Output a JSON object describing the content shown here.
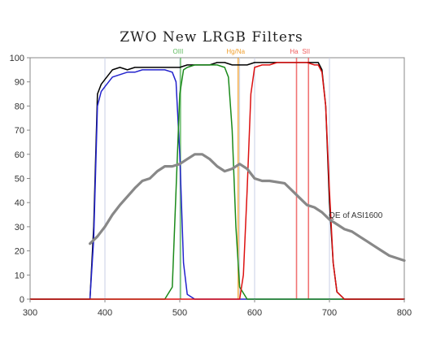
{
  "chart_data": {
    "type": "line",
    "title": "ZWO New LRGB Filters",
    "xlabel": "",
    "ylabel": "",
    "xlim": [
      300,
      800
    ],
    "ylim": [
      0,
      100
    ],
    "x_ticks": [
      300,
      400,
      500,
      600,
      700,
      800
    ],
    "y_ticks": [
      0,
      10,
      20,
      30,
      40,
      50,
      60,
      70,
      80,
      90,
      100
    ],
    "grid": false,
    "reference_lines": [
      {
        "label": "OIII",
        "x": 501,
        "color": "#5cb85c"
      },
      {
        "label": "Hg/Na",
        "x": 578,
        "color": "#f0a030"
      },
      {
        "label": "Ha",
        "x": 656,
        "color": "#ef5b5b"
      },
      {
        "label": "SII",
        "x": 672,
        "color": "#ef5b5b"
      }
    ],
    "light_lines_x": [
      400,
      500,
      580,
      600,
      700
    ],
    "annotations": [
      {
        "text": "QE of ASI1600",
        "x": 735,
        "y": 35
      }
    ],
    "series": [
      {
        "color": "#000000",
        "x": [
          300,
          380,
          385,
          390,
          395,
          400,
          410,
          420,
          430,
          440,
          450,
          460,
          470,
          480,
          490,
          500,
          510,
          520,
          530,
          540,
          550,
          560,
          570,
          580,
          590,
          600,
          610,
          620,
          630,
          640,
          650,
          660,
          670,
          680,
          685,
          690,
          695,
          700,
          705,
          710,
          720,
          740,
          800
        ],
        "y": [
          0,
          0,
          30,
          85,
          89,
          91,
          95,
          96,
          95,
          96,
          96,
          96,
          96,
          96,
          96,
          96,
          97,
          97,
          97,
          97,
          98,
          98,
          97,
          97,
          97,
          98,
          98,
          98,
          98,
          98,
          98,
          98,
          98,
          98,
          98,
          95,
          80,
          40,
          15,
          3,
          0,
          0,
          0
        ]
      },
      {
        "color": "#2222cc",
        "x": [
          300,
          380,
          385,
          390,
          395,
          400,
          410,
          420,
          430,
          440,
          450,
          460,
          470,
          480,
          490,
          495,
          500,
          505,
          510,
          520,
          800
        ],
        "y": [
          0,
          0,
          25,
          80,
          86,
          88,
          92,
          93,
          94,
          94,
          95,
          95,
          95,
          95,
          94,
          90,
          60,
          15,
          2,
          0,
          0
        ]
      },
      {
        "color": "#1a8a1a",
        "x": [
          300,
          480,
          490,
          495,
          500,
          505,
          510,
          520,
          530,
          540,
          550,
          560,
          565,
          570,
          575,
          580,
          590,
          800
        ],
        "y": [
          0,
          0,
          5,
          45,
          85,
          95,
          96,
          97,
          97,
          97,
          97,
          96,
          92,
          70,
          30,
          5,
          0,
          0
        ]
      },
      {
        "color": "#dd1111",
        "x": [
          300,
          580,
          585,
          590,
          595,
          600,
          610,
          620,
          630,
          640,
          650,
          660,
          670,
          680,
          685,
          690,
          695,
          700,
          705,
          710,
          720,
          800
        ],
        "y": [
          0,
          0,
          10,
          45,
          85,
          96,
          97,
          97,
          98,
          98,
          98,
          98,
          98,
          97,
          97,
          94,
          80,
          45,
          15,
          3,
          0,
          0
        ]
      },
      {
        "color": "#888888",
        "x": [
          380,
          390,
          400,
          410,
          420,
          440,
          450,
          460,
          470,
          480,
          490,
          500,
          510,
          520,
          530,
          540,
          550,
          560,
          570,
          580,
          590,
          600,
          610,
          620,
          640,
          650,
          660,
          670,
          680,
          690,
          700,
          710,
          720,
          730,
          740,
          750,
          760,
          770,
          780,
          790,
          800
        ],
        "y": [
          23,
          26,
          30,
          35,
          39,
          46,
          49,
          50,
          53,
          55,
          55,
          56,
          58,
          60,
          60,
          58,
          55,
          53,
          54,
          56,
          54,
          50,
          49,
          49,
          48,
          45,
          42,
          39,
          38,
          36,
          33,
          31,
          29,
          28,
          26,
          24,
          22,
          20,
          18,
          17,
          16
        ]
      }
    ]
  }
}
